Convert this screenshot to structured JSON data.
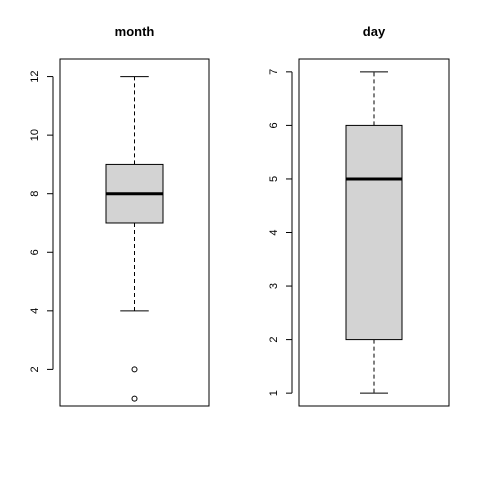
{
  "chart_data": [
    {
      "type": "box",
      "title": "month",
      "ylim": [
        0.75,
        12.6
      ],
      "yticks": [
        2,
        4,
        6,
        8,
        10,
        12
      ],
      "whisker_low": 4,
      "q1": 7,
      "median": 8,
      "q3": 9,
      "whisker_high": 12,
      "outliers": [
        2,
        1
      ],
      "box_color": "#d3d3d3"
    },
    {
      "type": "box",
      "title": "day",
      "ylim": [
        0.76,
        7.24
      ],
      "yticks": [
        1,
        2,
        3,
        4,
        5,
        6,
        7
      ],
      "whisker_low": 1,
      "q1": 2,
      "median": 5,
      "q3": 6,
      "whisker_high": 7,
      "outliers": [],
      "box_color": "#d3d3d3"
    }
  ]
}
